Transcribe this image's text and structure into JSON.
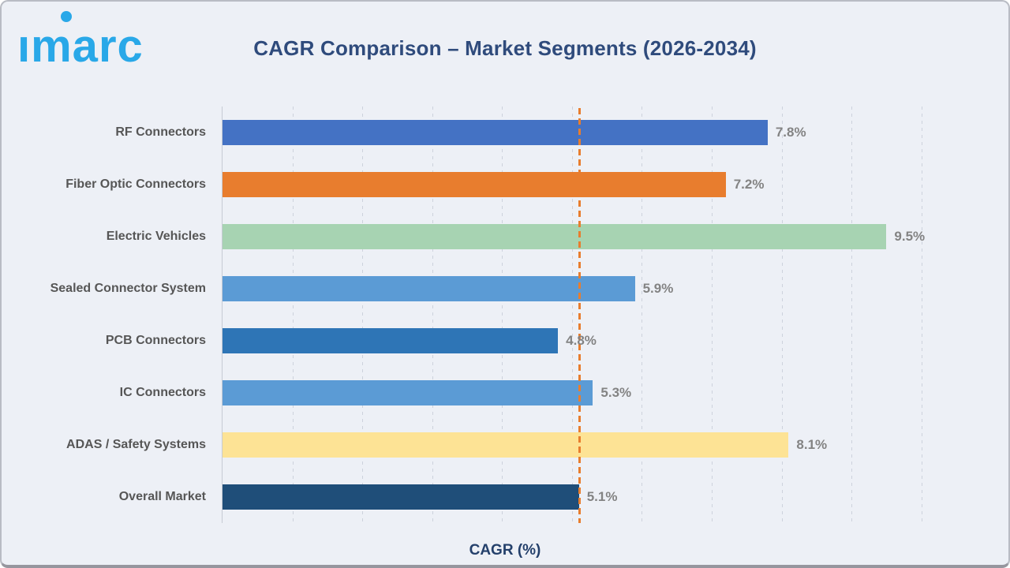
{
  "header": {
    "logo_text": "imarc",
    "title": "CAGR Comparison – Market Segments (2026-2034)"
  },
  "chart_data": {
    "type": "bar",
    "orientation": "horizontal",
    "title": "CAGR Comparison – Market Segments (2026-2034)",
    "categories": [
      "RF Connectors",
      "Fiber Optic Connectors",
      "Electric Vehicles",
      "Sealed Connector System",
      "PCB Connectors",
      "IC Connectors",
      "ADAS / Safety Systems",
      "Overall Market"
    ],
    "values": [
      7.8,
      7.2,
      9.5,
      5.9,
      4.8,
      5.3,
      8.1,
      5.1
    ],
    "value_labels": [
      "7.8%",
      "7.2%",
      "9.5%",
      "5.9%",
      "4.8%",
      "5.3%",
      "8.1%",
      "5.1%"
    ],
    "bar_colors": [
      "#4472C4",
      "#E87D2E",
      "#A7D3B2",
      "#5B9BD5",
      "#2E75B6",
      "#5B9BD5",
      "#FDE395",
      "#1F4E79"
    ],
    "xlabel": "CAGR (%)",
    "ylabel": "",
    "xlim": [
      0,
      10.85
    ],
    "gridline_interval": 1,
    "grid": "vertical-dashed",
    "legend": "none",
    "reference_line": {
      "value": 5.1,
      "color": "#E87D2E",
      "style": "dashed"
    }
  },
  "colors": {
    "background": "#EDF0F6",
    "logo": "#29A8E8",
    "title_text": "#2F4B7C",
    "category_text": "#565656",
    "value_text": "#838383",
    "gridline": "#CDD2DC",
    "axis_line": "#C6CBD4",
    "reference_line": "#E87D2E"
  }
}
